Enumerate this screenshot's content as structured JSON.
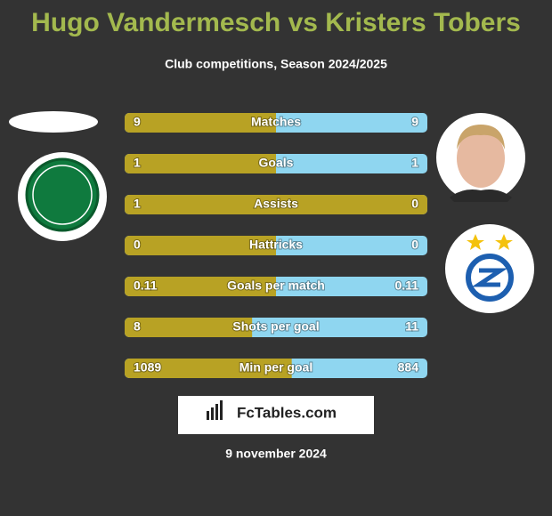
{
  "header": {
    "title": "Hugo Vandermesch vs Kristers Tobers",
    "subtitle": "Club competitions, Season 2024/2025"
  },
  "rows": [
    {
      "label": "Matches",
      "left": 9,
      "right": 9
    },
    {
      "label": "Goals",
      "left": 1,
      "right": 1
    },
    {
      "label": "Assists",
      "left": 1,
      "right": 0
    },
    {
      "label": "Hattricks",
      "left": 0,
      "right": 0
    },
    {
      "label": "Goals per match",
      "left": 0.11,
      "right": 0.11
    },
    {
      "label": "Shots per goal",
      "left": 8,
      "right": 11
    },
    {
      "label": "Min per goal",
      "left": 1089,
      "right": 884
    }
  ],
  "colors": {
    "left": "#b8a224",
    "right": "#8fd6f0"
  },
  "footer": {
    "brand": "FcTables.com",
    "date": "9 november 2024"
  }
}
